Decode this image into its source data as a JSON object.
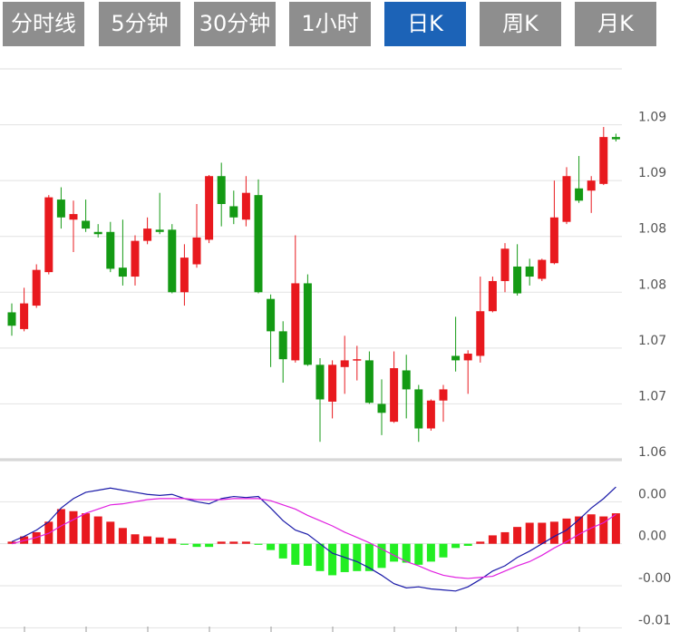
{
  "tabs": [
    {
      "label": "分时线",
      "active": false
    },
    {
      "label": "5分钟",
      "active": false
    },
    {
      "label": "30分钟",
      "active": false
    },
    {
      "label": "1小时",
      "active": false
    },
    {
      "label": "日K",
      "active": true
    },
    {
      "label": "周K",
      "active": false
    },
    {
      "label": "月K",
      "active": false
    }
  ],
  "chart_data": [
    {
      "type": "candlestick",
      "up_color": "#e8191e",
      "down_color": "#149a14",
      "ylim": [
        1.06,
        1.095
      ],
      "yticks": [
        1.06,
        {
          "value": 1.065,
          "label": "1.07"
        },
        1.07,
        {
          "value": 1.075,
          "label": "1.08"
        },
        1.08,
        {
          "value": 1.085,
          "label": "1.09"
        },
        1.09
      ],
      "open": [
        1.0732,
        1.0717,
        1.0738,
        1.0768,
        1.0833,
        1.0815,
        1.0814,
        1.0804,
        1.0804,
        1.0772,
        1.0764,
        1.0796,
        1.0806,
        1.0806,
        1.075,
        1.0775,
        1.0797,
        1.0854,
        1.0827,
        1.0815,
        1.0837,
        1.0744,
        1.0715,
        1.0689,
        1.0758,
        1.0685,
        1.0652,
        1.0683,
        1.0689,
        1.0689,
        1.065,
        1.0634,
        1.068,
        1.0663,
        1.0628,
        1.0653,
        1.0693,
        1.0689,
        1.0693,
        1.0733,
        1.076,
        1.0773,
        1.0773,
        1.0762,
        1.0776,
        1.0813,
        1.0843,
        1.0841,
        1.0847,
        1.0889
      ],
      "high": [
        1.074,
        1.0754,
        1.0775,
        1.0837,
        1.0844,
        1.0832,
        1.0833,
        1.0811,
        1.0813,
        1.0815,
        1.0801,
        1.0817,
        1.0839,
        1.0811,
        1.0793,
        1.0829,
        1.0855,
        1.0866,
        1.0841,
        1.0854,
        1.0851,
        1.0748,
        1.0724,
        1.0801,
        1.0766,
        1.0691,
        1.0689,
        1.0711,
        1.0702,
        1.0697,
        1.0672,
        1.0697,
        1.0694,
        1.0667,
        1.0654,
        1.0667,
        1.0728,
        1.0698,
        1.0764,
        1.0764,
        1.0794,
        1.0793,
        1.078,
        1.078,
        1.085,
        1.0862,
        1.0872,
        1.0854,
        1.0898,
        1.0892
      ],
      "low": [
        1.0711,
        1.0715,
        1.0736,
        1.0766,
        1.0807,
        1.0786,
        1.0804,
        1.0799,
        1.0768,
        1.0756,
        1.0756,
        1.0793,
        1.0802,
        1.0749,
        1.0738,
        1.0772,
        1.0794,
        1.0809,
        1.0811,
        1.0809,
        1.0749,
        1.0683,
        1.0669,
        1.0687,
        1.0684,
        1.0616,
        1.0637,
        1.0659,
        1.0671,
        1.065,
        1.0622,
        1.0633,
        1.0637,
        1.0616,
        1.0626,
        1.0634,
        1.0679,
        1.0659,
        1.0687,
        1.0732,
        1.075,
        1.0747,
        1.0756,
        1.076,
        1.0775,
        1.0811,
        1.083,
        1.0821,
        1.0846,
        1.0885
      ],
      "close": [
        1.072,
        1.074,
        1.077,
        1.0835,
        1.0817,
        1.082,
        1.0807,
        1.0802,
        1.0771,
        1.0764,
        1.0796,
        1.0807,
        1.0804,
        1.075,
        1.0781,
        1.0799,
        1.0854,
        1.0829,
        1.0817,
        1.0839,
        1.075,
        1.0715,
        1.069,
        1.0758,
        1.0685,
        1.0654,
        1.0685,
        1.0689,
        1.069,
        1.0651,
        1.0642,
        1.0682,
        1.0663,
        1.0628,
        1.0653,
        1.0663,
        1.0689,
        1.0695,
        1.0733,
        1.076,
        1.0789,
        1.0749,
        1.0764,
        1.0779,
        1.0817,
        1.0854,
        1.0832,
        1.085,
        1.0889,
        1.0887
      ]
    },
    {
      "type": "macd",
      "up_color": "#e8191e",
      "down_color": "#22ee22",
      "ylim": [
        -0.0084,
        0.008
      ],
      "yticks": [
        {
          "value": 0.004,
          "label": "0.00"
        },
        {
          "value": 0,
          "label": "0.00"
        },
        {
          "value": -0.004,
          "label": "-0.00"
        },
        {
          "value": -0.008,
          "label": "-0.01"
        }
      ],
      "histogram": [
        0.0002,
        0.0007,
        0.0011,
        0.0021,
        0.0033,
        0.0031,
        0.0029,
        0.0026,
        0.0021,
        0.0015,
        0.0009,
        0.0007,
        0.0006,
        0.0005,
        -0.0001,
        -0.0003,
        -0.0003,
        0.0002,
        0.0002,
        0.0002,
        -0.0001,
        -0.0006,
        -0.0014,
        -0.002,
        -0.0021,
        -0.0026,
        -0.003,
        -0.0027,
        -0.0026,
        -0.0026,
        -0.0023,
        -0.0017,
        -0.0018,
        -0.002,
        -0.0017,
        -0.0013,
        -0.0004,
        -0.0002,
        0.0002,
        0.0008,
        0.0011,
        0.0016,
        0.002,
        0.002,
        0.0021,
        0.0024,
        0.0026,
        0.0028,
        0.0026,
        0.0029
      ],
      "dif": {
        "color": "#1a1aa8",
        "values": [
          0.0002,
          0.0007,
          0.0013,
          0.0021,
          0.0034,
          0.0043,
          0.0049,
          0.0051,
          0.0053,
          0.0051,
          0.0049,
          0.0047,
          0.0046,
          0.0047,
          0.0043,
          0.004,
          0.0038,
          0.0043,
          0.0045,
          0.0044,
          0.0045,
          0.0034,
          0.0022,
          0.0013,
          0.0009,
          0,
          -0.0009,
          -0.0013,
          -0.0017,
          -0.0023,
          -0.003,
          -0.0038,
          -0.0042,
          -0.0041,
          -0.0043,
          -0.0044,
          -0.0045,
          -0.0041,
          -0.0034,
          -0.0026,
          -0.0021,
          -0.0013,
          -0.0007,
          0,
          0.0007,
          0.0013,
          0.0023,
          0.0034,
          0.0043,
          0.0054
        ]
      },
      "dea": {
        "color": "#e020e0",
        "values": [
          0,
          0.0003,
          0.0006,
          0.001,
          0.0017,
          0.0023,
          0.0029,
          0.0033,
          0.0037,
          0.0038,
          0.004,
          0.0042,
          0.0043,
          0.0043,
          0.0043,
          0.0042,
          0.0042,
          0.0042,
          0.0043,
          0.0043,
          0.0043,
          0.0041,
          0.0037,
          0.0033,
          0.0027,
          0.0022,
          0.0017,
          0.0011,
          0.0006,
          0.0001,
          -0.0005,
          -0.0011,
          -0.0017,
          -0.0021,
          -0.0026,
          -0.003,
          -0.0032,
          -0.0033,
          -0.0032,
          -0.0031,
          -0.0026,
          -0.0021,
          -0.0017,
          -0.0011,
          -0.0004,
          0.0002,
          0.0009,
          0.0015,
          0.002,
          0.0028
        ]
      }
    }
  ]
}
